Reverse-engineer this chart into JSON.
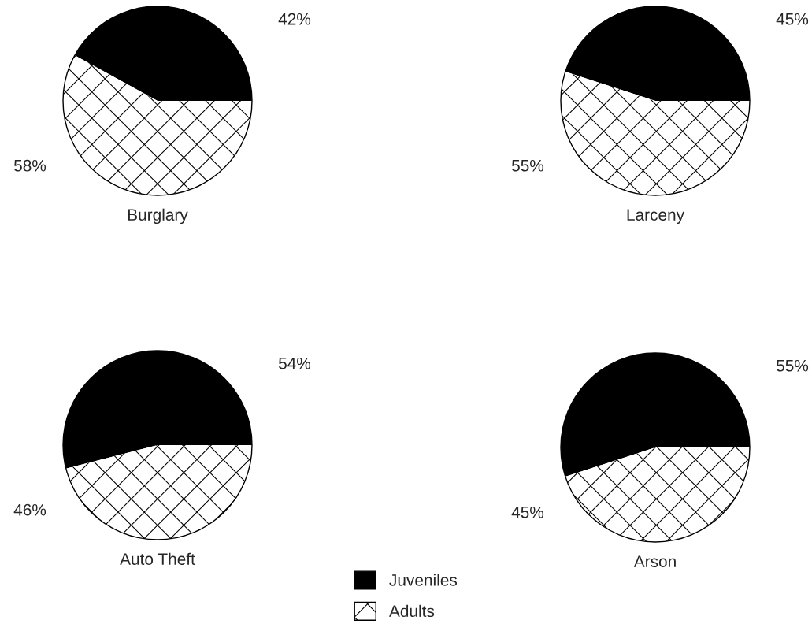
{
  "chart_data": [
    {
      "type": "pie",
      "title": "Burglary",
      "categories": [
        "Juveniles",
        "Adults"
      ],
      "values": [
        42,
        58
      ],
      "colors": [
        "#000000",
        "#ffffff"
      ],
      "value_labels": [
        "42%",
        "58%"
      ],
      "legend": "bottom"
    },
    {
      "type": "pie",
      "title": "Larceny",
      "categories": [
        null,
        null
      ],
      "values": [
        45,
        55
      ],
      "colors": [
        "#000000",
        "#ffffff"
      ],
      "value_labels": [
        "45%",
        "55%"
      ]
    },
    {
      "type": "pie",
      "title": "Auto Theft",
      "categories": [
        null,
        null
      ],
      "values": [
        54,
        46
      ],
      "colors": [
        "#000000",
        "#ffffff"
      ],
      "value_labels": [
        "54%",
        "46%"
      ]
    },
    {
      "type": "pie",
      "title": "Arson",
      "categories": [
        null,
        null
      ],
      "values": [
        55,
        45
      ],
      "colors": [
        "#000000",
        "#ffffff"
      ],
      "value_labels": [
        "55%",
        "45%"
      ]
    }
  ]
}
